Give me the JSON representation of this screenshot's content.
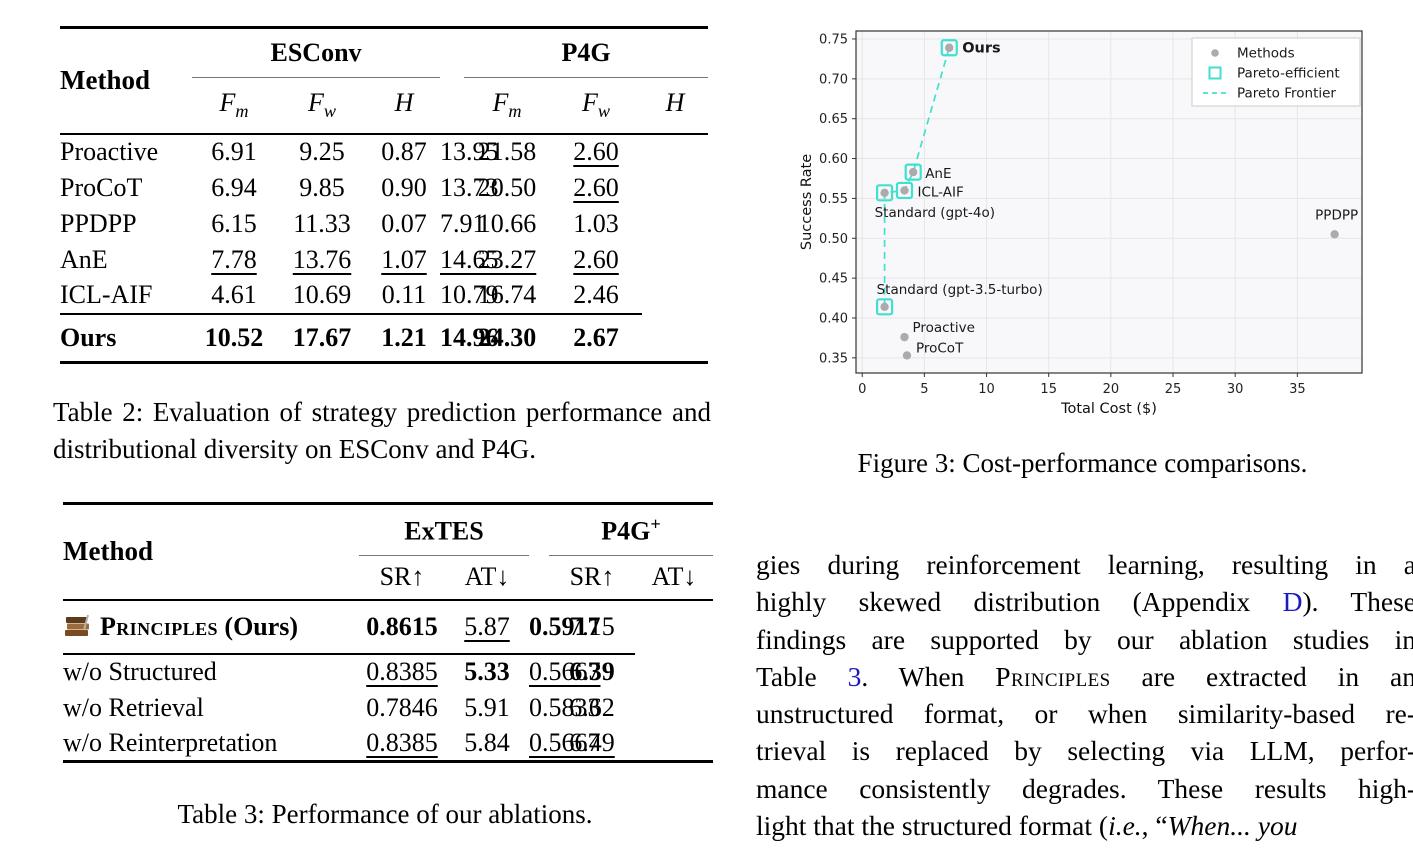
{
  "table2": {
    "method_label": "Method",
    "groups": [
      "ESConv",
      "P4G"
    ],
    "subcols": [
      {
        "base": "F",
        "sub": "m"
      },
      {
        "base": "F",
        "sub": "w"
      },
      {
        "base": "H",
        "sub": ""
      },
      {
        "base": "F",
        "sub": "m"
      },
      {
        "base": "F",
        "sub": "w"
      },
      {
        "base": "H",
        "sub": ""
      }
    ],
    "rows": [
      {
        "method": "Proactive",
        "cells": [
          {
            "v": "6.91"
          },
          {
            "v": "9.25"
          },
          {
            "v": "0.87"
          },
          {
            "v": "13.95"
          },
          {
            "v": "21.58"
          },
          {
            "v": "2.60",
            "u": true
          }
        ]
      },
      {
        "method": "ProCoT",
        "cells": [
          {
            "v": "6.94"
          },
          {
            "v": "9.85"
          },
          {
            "v": "0.90"
          },
          {
            "v": "13.73"
          },
          {
            "v": "20.50"
          },
          {
            "v": "2.60",
            "u": true
          }
        ]
      },
      {
        "method": "PPDPP",
        "cells": [
          {
            "v": "6.15"
          },
          {
            "v": "11.33"
          },
          {
            "v": "0.07"
          },
          {
            "v": "7.91"
          },
          {
            "v": "10.66"
          },
          {
            "v": "1.03"
          }
        ]
      },
      {
        "method": "AnE",
        "cells": [
          {
            "v": "7.78",
            "u": true
          },
          {
            "v": "13.76",
            "u": true
          },
          {
            "v": "1.07",
            "u": true
          },
          {
            "v": "14.65",
            "u": true
          },
          {
            "v": "23.27",
            "u": true
          },
          {
            "v": "2.60",
            "u": true
          }
        ]
      },
      {
        "method": "ICL-AIF",
        "cells": [
          {
            "v": "4.61"
          },
          {
            "v": "10.69"
          },
          {
            "v": "0.11"
          },
          {
            "v": "10.79"
          },
          {
            "v": "16.74"
          },
          {
            "v": "2.46"
          }
        ]
      },
      {
        "method": "Ours",
        "bold": true,
        "cls": "ours-row",
        "cells": [
          {
            "v": "10.52",
            "b": true
          },
          {
            "v": "17.67",
            "b": true
          },
          {
            "v": "1.21",
            "b": true
          },
          {
            "v": "14.96",
            "b": true
          },
          {
            "v": "24.30",
            "b": true
          },
          {
            "v": "2.67",
            "b": true
          }
        ]
      }
    ],
    "caption": "Table 2: Evaluation of strategy prediction performance and distributional diversity on ESConv and P4G."
  },
  "table3": {
    "method_label": "Method",
    "groups": [
      {
        "label": "ExTES",
        "sup": ""
      },
      {
        "label": "P4G",
        "sup": "+"
      }
    ],
    "subcols": [
      "SR↑",
      "AT↓",
      "SR↑",
      "AT↓"
    ],
    "rows": [
      {
        "icon": "books-icon",
        "method": "Principles",
        "method_suffix": " (Ours)",
        "sc": true,
        "bold": true,
        "cls": "rule-below",
        "cells": [
          {
            "v": "0.8615",
            "b": true
          },
          {
            "v": "5.87",
            "u": true
          },
          {
            "v": "0.5917",
            "b": true
          },
          {
            "v": "7.15"
          }
        ]
      },
      {
        "method": "w/o Structured",
        "cells": [
          {
            "v": "0.8385",
            "u": true
          },
          {
            "v": "5.33",
            "b": true
          },
          {
            "v": "0.5667",
            "u": true
          },
          {
            "v": "6.39",
            "b": true
          }
        ]
      },
      {
        "method": "w/o Retrieval",
        "cells": [
          {
            "v": "0.7846"
          },
          {
            "v": "5.91"
          },
          {
            "v": "0.5833"
          },
          {
            "v": "6.62"
          }
        ]
      },
      {
        "method": "w/o Reinterpretation",
        "cells": [
          {
            "v": "0.8385",
            "u": true
          },
          {
            "v": "5.84"
          },
          {
            "v": "0.5667",
            "u": true
          },
          {
            "v": "6.49",
            "u": true
          }
        ]
      }
    ],
    "caption": "Table 3: Performance of our ablations."
  },
  "figure": {
    "caption": "Figure 3: Cost-performance comparisons."
  },
  "chart_data": {
    "type": "scatter",
    "title": "",
    "xlabel": "Total Cost ($)",
    "ylabel": "Success Rate",
    "xlim": [
      -0.5,
      40.2
    ],
    "ylim": [
      0.331,
      0.76
    ],
    "xticks": [
      "0",
      "5",
      "10",
      "15",
      "20",
      "25",
      "30",
      "35"
    ],
    "yticks": [
      "0.35",
      "0.40",
      "0.45",
      "0.50",
      "0.55",
      "0.60",
      "0.65",
      "0.70",
      "0.75"
    ],
    "grid": true,
    "legend_position": "upper right",
    "legend": [
      {
        "label": "Methods",
        "marker": "dot"
      },
      {
        "label": "Pareto-efficient",
        "marker": "square"
      },
      {
        "label": "Pareto Frontier",
        "marker": "dashed"
      }
    ],
    "series": [
      {
        "name": "Ours",
        "x": 7.0,
        "y": 0.739,
        "pareto": true,
        "label_style": "bold",
        "label_dx": 13,
        "label_dy": 5,
        "label_anchor": "start"
      },
      {
        "name": "AnE",
        "x": 4.1,
        "y": 0.583,
        "pareto": true,
        "label_dx": 12,
        "label_dy": 6,
        "label_anchor": "start"
      },
      {
        "name": "ICL-AIF",
        "x": 3.4,
        "y": 0.56,
        "pareto": true,
        "label_dx": 13,
        "label_dy": 6,
        "label_anchor": "start"
      },
      {
        "name": "Standard (gpt-4o)",
        "x": 1.8,
        "y": 0.557,
        "pareto": true,
        "label_dx": -10,
        "label_dy": 24,
        "label_anchor": "start"
      },
      {
        "name": "Standard (gpt-3.5-turbo)",
        "x": 1.8,
        "y": 0.414,
        "pareto": true,
        "label_dx": -8,
        "label_dy": -13,
        "label_anchor": "start"
      },
      {
        "name": "Proactive",
        "x": 3.4,
        "y": 0.376,
        "pareto": false,
        "label_dx": 8,
        "label_dy": -5,
        "label_anchor": "start"
      },
      {
        "name": "ProCoT",
        "x": 3.6,
        "y": 0.353,
        "pareto": false,
        "label_dx": 9,
        "label_dy": -3,
        "label_anchor": "start"
      },
      {
        "name": "PPDPP",
        "x": 38.0,
        "y": 0.505,
        "pareto": false,
        "label_dx": 2,
        "label_dy": -15,
        "label_anchor": "middle"
      }
    ],
    "frontier": [
      "Standard (gpt-3.5-turbo)",
      "Standard (gpt-4o)",
      "ICL-AIF",
      "AnE",
      "Ours"
    ],
    "colors": {
      "pareto": "#40E0D0",
      "methods": "#ababab",
      "grid": "#e6e6ea",
      "bg": "#f8f8fa",
      "spine": "#333333"
    }
  },
  "paragraph": {
    "lines": [
      {
        "last": false,
        "segments": [
          {
            "t": "gies during reinforcement learning, resulting in a",
            "s": ""
          }
        ]
      },
      {
        "last": false,
        "segments": [
          {
            "t": "highly skewed distribution (Appendix ",
            "s": ""
          },
          {
            "t": "D",
            "s": "link"
          },
          {
            "t": "). These",
            "s": ""
          }
        ]
      },
      {
        "last": false,
        "segments": [
          {
            "t": "findings are supported by our ablation studies in",
            "s": ""
          }
        ]
      },
      {
        "last": false,
        "segments": [
          {
            "t": "Table ",
            "s": ""
          },
          {
            "t": "3",
            "s": "link"
          },
          {
            "t": ". When ",
            "s": ""
          },
          {
            "t": "Principles",
            "s": "sc"
          },
          {
            "t": " are extracted in an",
            "s": ""
          }
        ]
      },
      {
        "last": false,
        "segments": [
          {
            "t": "unstructured format, or when similarity-based re-",
            "s": ""
          }
        ]
      },
      {
        "last": false,
        "segments": [
          {
            "t": "trieval is replaced by selecting via LLM, perfor-",
            "s": ""
          }
        ]
      },
      {
        "last": false,
        "segments": [
          {
            "t": "mance consistently degrades. These results high-",
            "s": ""
          }
        ]
      },
      {
        "last": true,
        "segments": [
          {
            "t": "light that the structured format (",
            "s": ""
          },
          {
            "t": "i.e.",
            "s": "i"
          },
          {
            "t": ", “",
            "s": ""
          },
          {
            "t": "When... you",
            "s": "i"
          }
        ]
      }
    ]
  }
}
